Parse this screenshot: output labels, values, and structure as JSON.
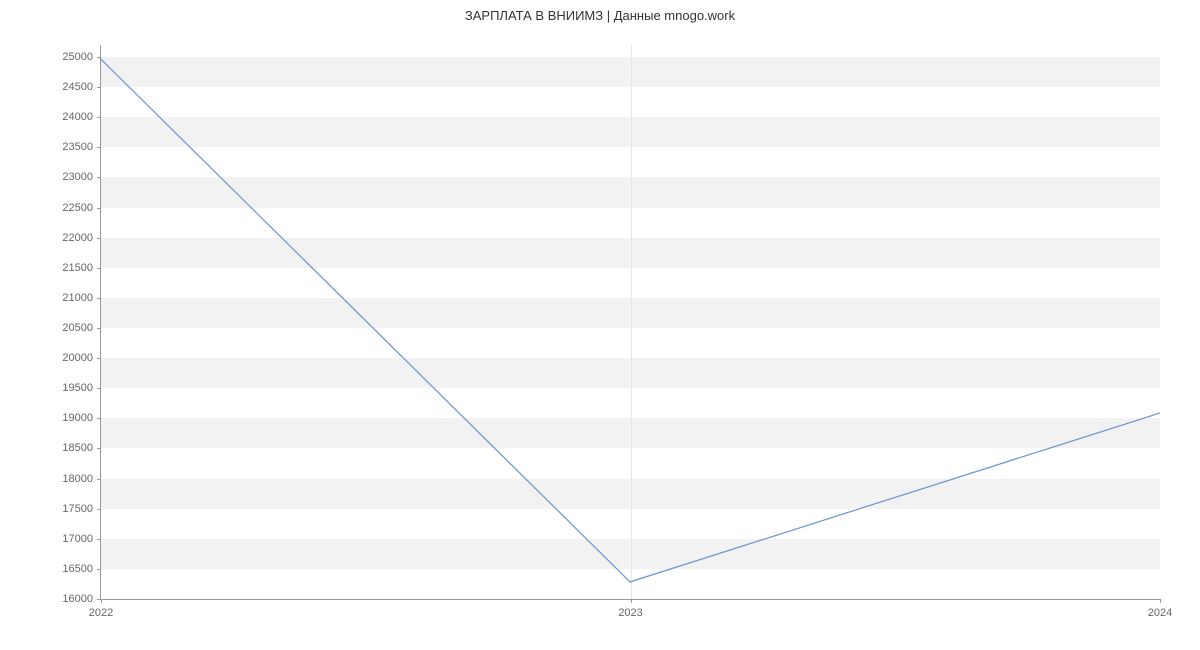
{
  "chart": {
    "type": "line",
    "title": "ЗАРПЛАТА В ВНИИМЗ | Данные mnogo.work",
    "title_fontsize": 13,
    "title_color": "#333333",
    "background_color": "#ffffff",
    "grid_band_color": "#f2f2f2",
    "axis_color": "#999999",
    "tick_label_color": "#666666",
    "tick_label_fontsize": 11,
    "line_color": "#6795d0",
    "line_width": 1.2,
    "x": {
      "ticks": [
        "2022",
        "2023",
        "2024"
      ],
      "tick_positions": [
        0,
        0.5,
        1
      ]
    },
    "y": {
      "min": 16000,
      "max": 25200,
      "ticks": [
        16000,
        16500,
        17000,
        17500,
        18000,
        18500,
        19000,
        19500,
        20000,
        20500,
        21000,
        21500,
        22000,
        22500,
        23000,
        23500,
        24000,
        24500,
        25000
      ]
    },
    "series": [
      {
        "x": 0.0,
        "y": 24980
      },
      {
        "x": 0.5,
        "y": 16300
      },
      {
        "x": 1.0,
        "y": 19100
      }
    ]
  }
}
